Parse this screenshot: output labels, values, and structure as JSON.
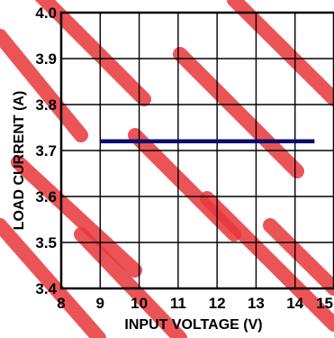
{
  "chart_data": {
    "type": "line",
    "xlabel": "INPUT VOLTAGE (V)",
    "ylabel": "LOAD CURRENT (A)",
    "xlim": [
      8,
      15
    ],
    "ylim": [
      3.4,
      4.0
    ],
    "x_ticks": [
      "8",
      "9",
      "10",
      "11",
      "12",
      "13",
      "14",
      "15"
    ],
    "y_ticks": [
      "3.4",
      "3.5",
      "3.6",
      "3.7",
      "3.8",
      "3.9",
      "4.0"
    ],
    "grid": true,
    "series": [
      {
        "x": [
          9.0,
          14.5
        ],
        "y": [
          3.72,
          3.72
        ],
        "color": "#0a0a6e"
      }
    ]
  },
  "watermark": {
    "color": "#e8373a"
  }
}
